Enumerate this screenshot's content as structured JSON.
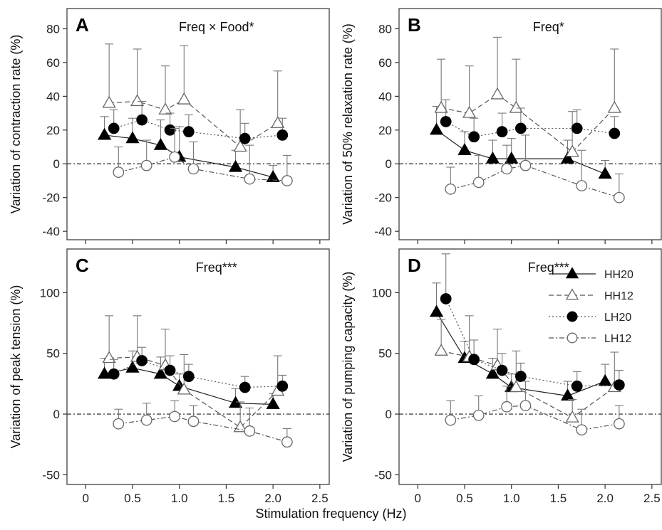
{
  "figure": {
    "xlabel": "Stimulation frequency (Hz)"
  },
  "legend": [
    {
      "name": "HH20",
      "marker": "triangle-filled",
      "line": "solid"
    },
    {
      "name": "HH12",
      "marker": "triangle-open",
      "line": "dashed"
    },
    {
      "name": "LH20",
      "marker": "circle-filled",
      "line": "dotted"
    },
    {
      "name": "LH12",
      "marker": "circle-open",
      "line": "dashdot"
    }
  ],
  "chart_data": [
    {
      "type": "line",
      "panel": "A",
      "annotation": "Freq × Food*",
      "xlabel": "",
      "ylabel": "Variation of contraction rate (%)",
      "xlim": [
        -0.2,
        2.6
      ],
      "ylim": [
        -45,
        92
      ],
      "yticks": [
        -40,
        -20,
        0,
        20,
        40,
        60,
        80
      ],
      "xticks": [
        0,
        0.5,
        1.0,
        1.5,
        2.0,
        2.5
      ],
      "show_xticklabels": false,
      "series": [
        {
          "name": "HH20",
          "points": [
            [
              0.2,
              17
            ],
            [
              0.5,
              15
            ],
            [
              0.8,
              11
            ],
            [
              1.0,
              4
            ],
            [
              1.6,
              -2
            ],
            [
              2.0,
              -8
            ]
          ],
          "err": [
            11,
            12,
            15,
            18,
            10,
            7
          ]
        },
        {
          "name": "HH12",
          "points": [
            [
              0.25,
              36
            ],
            [
              0.55,
              37
            ],
            [
              0.85,
              32
            ],
            [
              1.05,
              38
            ],
            [
              1.65,
              10
            ],
            [
              2.05,
              24
            ]
          ],
          "err": [
            35,
            31,
            26,
            32,
            22,
            31
          ]
        },
        {
          "name": "LH20",
          "points": [
            [
              0.3,
              21
            ],
            [
              0.6,
              26
            ],
            [
              0.9,
              20
            ],
            [
              1.1,
              19
            ],
            [
              1.7,
              15
            ],
            [
              2.1,
              17
            ]
          ],
          "err": [
            11,
            11,
            10,
            10,
            9,
            10
          ]
        },
        {
          "name": "LH12",
          "points": [
            [
              0.35,
              -5
            ],
            [
              0.65,
              -1
            ],
            [
              0.95,
              4
            ],
            [
              1.15,
              -3
            ],
            [
              1.75,
              -9
            ],
            [
              2.15,
              -10
            ]
          ],
          "err": [
            15,
            15,
            17,
            16,
            20,
            15
          ]
        }
      ]
    },
    {
      "type": "line",
      "panel": "B",
      "annotation": "Freq*",
      "xlabel": "",
      "ylabel": "Variation of 50% relaxation rate (%)",
      "xlim": [
        -0.2,
        2.6
      ],
      "ylim": [
        -45,
        92
      ],
      "yticks": [
        -40,
        -20,
        0,
        20,
        40,
        60,
        80
      ],
      "xticks": [
        0,
        0.5,
        1.0,
        1.5,
        2.0,
        2.5
      ],
      "show_xticklabels": false,
      "series": [
        {
          "name": "HH20",
          "points": [
            [
              0.2,
              20
            ],
            [
              0.5,
              8
            ],
            [
              0.8,
              3
            ],
            [
              1.0,
              3
            ],
            [
              1.6,
              3
            ],
            [
              2.0,
              -6
            ]
          ],
          "err": [
            14,
            11,
            11,
            12,
            11,
            8
          ]
        },
        {
          "name": "HH12",
          "points": [
            [
              0.25,
              33
            ],
            [
              0.55,
              30
            ],
            [
              0.85,
              41
            ],
            [
              1.05,
              33
            ],
            [
              1.65,
              7
            ],
            [
              2.1,
              33
            ]
          ],
          "err": [
            29,
            28,
            34,
            29,
            24,
            35
          ]
        },
        {
          "name": "LH20",
          "points": [
            [
              0.3,
              25
            ],
            [
              0.6,
              16
            ],
            [
              0.9,
              19
            ],
            [
              1.1,
              21
            ],
            [
              1.7,
              21
            ],
            [
              2.1,
              18
            ]
          ],
          "err": [
            13,
            11,
            11,
            12,
            11,
            10
          ]
        },
        {
          "name": "LH12",
          "points": [
            [
              0.35,
              -15
            ],
            [
              0.65,
              -11
            ],
            [
              0.95,
              -3
            ],
            [
              1.15,
              -1
            ],
            [
              1.75,
              -13
            ],
            [
              2.15,
              -20
            ]
          ],
          "err": [
            13,
            16,
            14,
            18,
            21,
            14
          ]
        }
      ]
    },
    {
      "type": "line",
      "panel": "C",
      "annotation": "Freq***",
      "xlabel": "",
      "ylabel": "Variation of peak tension (%)",
      "xlim": [
        -0.2,
        2.6
      ],
      "ylim": [
        -58,
        136
      ],
      "yticks": [
        -50,
        0,
        50,
        100
      ],
      "xticks": [
        0,
        0.5,
        1.0,
        1.5,
        2.0,
        2.5
      ],
      "xticklabels": [
        "0",
        "0.5",
        "1.0",
        "1.5",
        "2.0",
        "2.5"
      ],
      "show_xticklabels": true,
      "series": [
        {
          "name": "HH20",
          "points": [
            [
              0.2,
              33
            ],
            [
              0.5,
              38
            ],
            [
              0.8,
              33
            ],
            [
              1.0,
              23
            ],
            [
              1.6,
              9
            ],
            [
              2.0,
              8
            ]
          ],
          "err": [
            13,
            14,
            14,
            10,
            12,
            9
          ]
        },
        {
          "name": "HH12",
          "points": [
            [
              0.25,
              46
            ],
            [
              0.55,
              47
            ],
            [
              0.85,
              40
            ],
            [
              1.05,
              20
            ],
            [
              1.65,
              -11
            ],
            [
              2.05,
              19
            ]
          ],
          "err": [
            35,
            34,
            30,
            29,
            21,
            29
          ]
        },
        {
          "name": "LH20",
          "points": [
            [
              0.3,
              33
            ],
            [
              0.6,
              44
            ],
            [
              0.9,
              36
            ],
            [
              1.1,
              31
            ],
            [
              1.7,
              22
            ],
            [
              2.1,
              23
            ]
          ],
          "err": [
            12,
            11,
            12,
            10,
            9,
            9
          ]
        },
        {
          "name": "LH12",
          "points": [
            [
              0.35,
              -8
            ],
            [
              0.65,
              -5
            ],
            [
              0.95,
              -2
            ],
            [
              1.15,
              -6
            ],
            [
              1.75,
              -14
            ],
            [
              2.15,
              -23
            ]
          ],
          "err": [
            12,
            14,
            13,
            13,
            19,
            11
          ]
        }
      ]
    },
    {
      "type": "line",
      "panel": "D",
      "annotation": "Freq***",
      "xlabel": "",
      "ylabel": "Variation of pumping capacity (%)",
      "xlim": [
        -0.2,
        2.6
      ],
      "ylim": [
        -58,
        136
      ],
      "yticks": [
        -50,
        0,
        50,
        100
      ],
      "xticks": [
        0,
        0.5,
        1.0,
        1.5,
        2.0,
        2.5
      ],
      "xticklabels": [
        "0",
        "0.5",
        "1.0",
        "1.5",
        "2.0",
        "2.5"
      ],
      "show_xticklabels": true,
      "series": [
        {
          "name": "HH20",
          "points": [
            [
              0.2,
              84
            ],
            [
              0.5,
              46
            ],
            [
              0.8,
              33
            ],
            [
              1.0,
              22
            ],
            [
              1.6,
              15
            ],
            [
              2.0,
              27
            ]
          ],
          "err": [
            24,
            14,
            13,
            11,
            12,
            14
          ]
        },
        {
          "name": "HH12",
          "points": [
            [
              0.25,
              52
            ],
            [
              0.55,
              47
            ],
            [
              0.85,
              40
            ],
            [
              1.05,
              22
            ],
            [
              1.65,
              -3
            ],
            [
              2.1,
              22
            ]
          ],
          "err": [
            26,
            34,
            30,
            30,
            15,
            29
          ]
        },
        {
          "name": "LH20",
          "points": [
            [
              0.3,
              95
            ],
            [
              0.6,
              45
            ],
            [
              0.9,
              36
            ],
            [
              1.1,
              31
            ],
            [
              1.7,
              23
            ],
            [
              2.15,
              24
            ]
          ],
          "err": [
            37,
            16,
            14,
            11,
            12,
            12
          ]
        },
        {
          "name": "LH12",
          "points": [
            [
              0.35,
              -5
            ],
            [
              0.65,
              -1
            ],
            [
              0.95,
              6
            ],
            [
              1.15,
              7
            ],
            [
              1.75,
              -13
            ],
            [
              2.15,
              -8
            ]
          ],
          "err": [
            16,
            16,
            17,
            20,
            17,
            15
          ]
        }
      ]
    }
  ]
}
